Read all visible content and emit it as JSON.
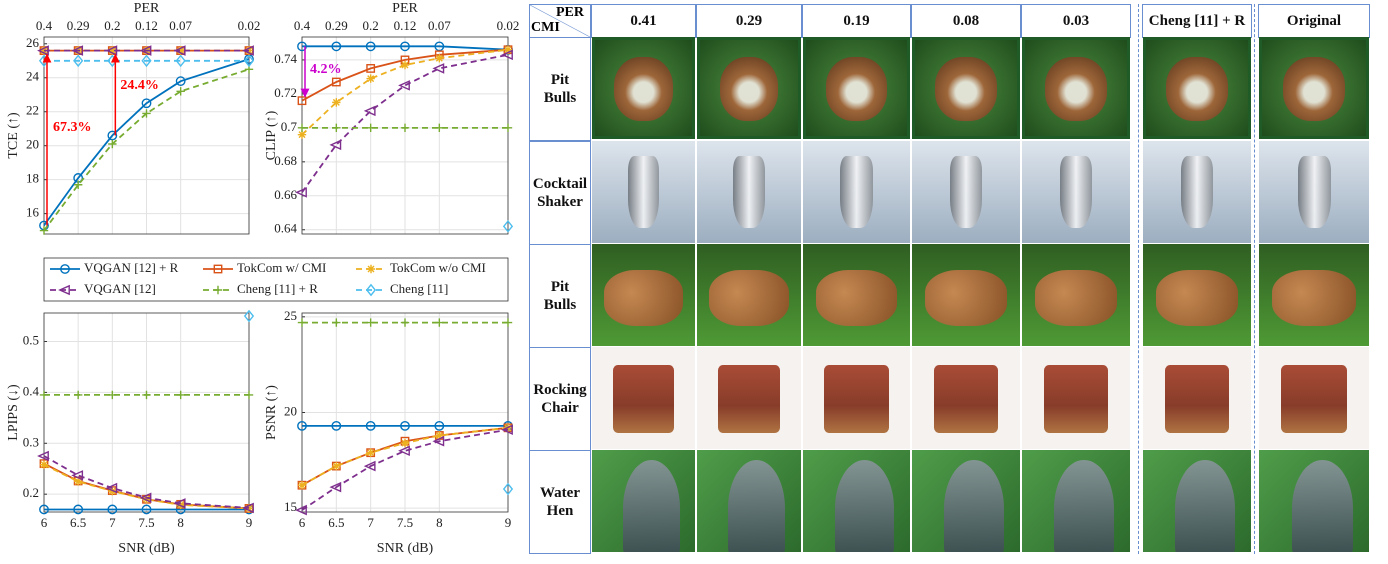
{
  "legend": {
    "series": [
      {
        "name": "VQGAN [12] + R",
        "color": "#0072bd",
        "marker": "circle",
        "dash": false
      },
      {
        "name": "TokCom w/ CMI",
        "color": "#d95319",
        "marker": "square",
        "dash": false
      },
      {
        "name": "TokCom w/o CMI",
        "color": "#edb120",
        "marker": "star",
        "dash": true
      },
      {
        "name": "VQGAN [12]",
        "color": "#7e2f8e",
        "marker": "triangle",
        "dash": true
      },
      {
        "name": "Cheng [11] + R",
        "color": "#77ac30",
        "marker": "plus",
        "dash": true
      },
      {
        "name": "Cheng [11]",
        "color": "#4dbeee",
        "marker": "diamond",
        "dash": true
      }
    ]
  },
  "chart_data": [
    {
      "type": "line",
      "ylabel": "TCE (↑)",
      "x2label": "PER",
      "x": [
        6,
        6.5,
        7,
        7.5,
        8,
        9
      ],
      "xlim": [
        6,
        9
      ],
      "x2ticks": [
        {
          "value": 6,
          "label": "0.4"
        },
        {
          "value": 6.5,
          "label": "0.29"
        },
        {
          "value": 7,
          "label": "0.2"
        },
        {
          "value": 7.5,
          "label": "0.12"
        },
        {
          "value": 8,
          "label": "0.07"
        },
        {
          "value": 9,
          "label": "0.02"
        }
      ],
      "ylim": [
        14.8,
        26.4
      ],
      "yticks": [
        16,
        18,
        20,
        22,
        24,
        26
      ],
      "grid": true,
      "annotations": [
        "67.3%",
        "24.4%"
      ],
      "series": [
        {
          "values": [
            15.3,
            18.1,
            20.6,
            22.5,
            23.8,
            25.1
          ]
        },
        {
          "values": [
            25.6,
            25.6,
            25.6,
            25.6,
            25.6,
            25.6
          ]
        },
        {
          "values": [
            25.6,
            25.6,
            25.6,
            25.6,
            25.6,
            25.6
          ]
        },
        {
          "values": [
            25.6,
            25.6,
            25.6,
            25.6,
            25.6,
            25.6
          ]
        },
        {
          "values": [
            15.0,
            17.7,
            20.1,
            21.9,
            23.2,
            24.5
          ]
        },
        {
          "values": [
            25.0,
            25.0,
            25.0,
            25.0,
            25.0,
            25.0
          ]
        }
      ]
    },
    {
      "type": "line",
      "ylabel": "CLIP (↑)",
      "x2label": "PER",
      "x": [
        6,
        6.5,
        7,
        7.5,
        8,
        9
      ],
      "xlim": [
        6,
        9
      ],
      "x2ticks": [
        {
          "value": 6,
          "label": "0.4"
        },
        {
          "value": 6.5,
          "label": "0.29"
        },
        {
          "value": 7,
          "label": "0.2"
        },
        {
          "value": 7.5,
          "label": "0.12"
        },
        {
          "value": 8,
          "label": "0.07"
        },
        {
          "value": 9,
          "label": "0.02"
        }
      ],
      "ylim": [
        0.6375,
        0.7535
      ],
      "yticks": [
        0.64,
        0.66,
        0.68,
        0.7,
        0.72,
        0.74
      ],
      "grid": true,
      "annotations": [
        "4.2%"
      ],
      "series": [
        {
          "values": [
            0.748,
            0.748,
            0.748,
            0.748,
            0.748,
            0.746
          ]
        },
        {
          "values": [
            0.716,
            0.727,
            0.735,
            0.74,
            0.743,
            0.746
          ]
        },
        {
          "values": [
            0.696,
            0.715,
            0.729,
            0.737,
            0.741,
            0.746
          ]
        },
        {
          "values": [
            0.662,
            0.69,
            0.71,
            0.725,
            0.735,
            0.743
          ]
        },
        {
          "values": [
            0.7,
            0.7,
            0.7,
            0.7,
            0.7,
            0.7
          ]
        },
        {
          "values": [
            null,
            null,
            null,
            null,
            null,
            0.642
          ]
        }
      ]
    },
    {
      "type": "line",
      "ylabel": "LPIPS (↓)",
      "xlabel": "SNR (dB)",
      "x": [
        6,
        6.5,
        7,
        7.5,
        8,
        9
      ],
      "xlim": [
        6,
        9
      ],
      "xticks": [
        6,
        6.5,
        7,
        7.5,
        8,
        9
      ],
      "ylim": [
        0.165,
        0.556
      ],
      "yticks": [
        0.2,
        0.3,
        0.4,
        0.5
      ],
      "grid": true,
      "series": [
        {
          "values": [
            0.17,
            0.17,
            0.17,
            0.17,
            0.17,
            0.17
          ]
        },
        {
          "values": [
            0.26,
            0.226,
            0.207,
            0.19,
            0.18,
            0.172
          ]
        },
        {
          "values": [
            0.258,
            0.225,
            0.206,
            0.19,
            0.179,
            0.172
          ]
        },
        {
          "values": [
            0.275,
            0.237,
            0.212,
            0.193,
            0.182,
            0.173
          ]
        },
        {
          "values": [
            0.395,
            0.395,
            0.395,
            0.395,
            0.395,
            0.395
          ]
        },
        {
          "values": [
            null,
            null,
            null,
            null,
            null,
            0.55
          ]
        }
      ]
    },
    {
      "type": "line",
      "ylabel": "PSNR (↑)",
      "xlabel": "SNR (dB)",
      "x": [
        6,
        6.5,
        7,
        7.5,
        8,
        9
      ],
      "xlim": [
        6,
        9
      ],
      "xticks": [
        6,
        6.5,
        7,
        7.5,
        8,
        9
      ],
      "ylim": [
        14.8,
        25.2
      ],
      "yticks": [
        15,
        20,
        25
      ],
      "grid": true,
      "series": [
        {
          "values": [
            19.3,
            19.3,
            19.3,
            19.3,
            19.3,
            19.3
          ]
        },
        {
          "values": [
            16.2,
            17.2,
            17.9,
            18.5,
            18.8,
            19.2
          ]
        },
        {
          "values": [
            16.2,
            17.2,
            17.9,
            18.4,
            18.8,
            19.2
          ]
        },
        {
          "values": [
            14.9,
            16.1,
            17.2,
            18.0,
            18.5,
            19.1
          ]
        },
        {
          "values": [
            24.7,
            24.7,
            24.7,
            24.7,
            24.7,
            24.7
          ]
        },
        {
          "values": [
            null,
            null,
            null,
            null,
            null,
            16.0
          ]
        }
      ]
    }
  ],
  "image_grid": {
    "corner_top": "PER",
    "corner_bottom": "CMI",
    "columns": [
      "0.41",
      "0.29",
      "0.19",
      "0.08",
      "0.03",
      "Cheng [11] + R",
      "Original"
    ],
    "rows": [
      "Pit Bulls",
      "Cocktail Shaker",
      "Pit Bulls",
      "Rocking Chair",
      "Water Hen"
    ]
  }
}
